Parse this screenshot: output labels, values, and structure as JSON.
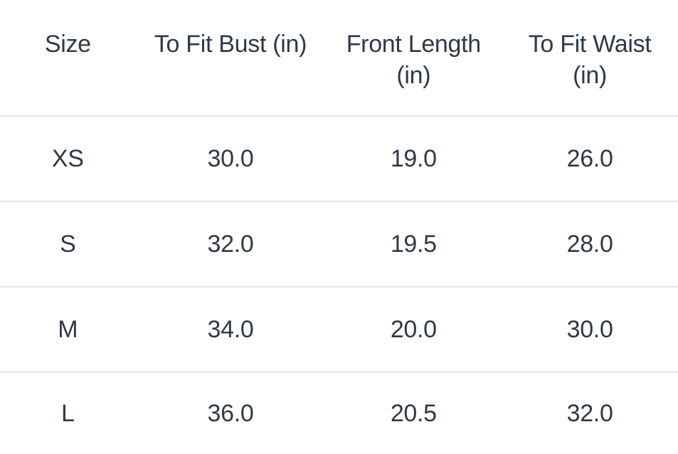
{
  "chart_data": {
    "type": "table",
    "columns": [
      "Size",
      "To Fit Bust (in)",
      "Front Length\n(in)",
      "To Fit Waist\n(in)"
    ],
    "rows": [
      [
        "XS",
        "30.0",
        "19.0",
        "26.0"
      ],
      [
        "S",
        "32.0",
        "19.5",
        "28.0"
      ],
      [
        "M",
        "34.0",
        "20.0",
        "30.0"
      ],
      [
        "L",
        "36.0",
        "20.5",
        "32.0"
      ]
    ],
    "units": "in"
  },
  "colors": {
    "text": "#2e3947",
    "divider": "#e8e6e2",
    "background": "#ffffff"
  }
}
